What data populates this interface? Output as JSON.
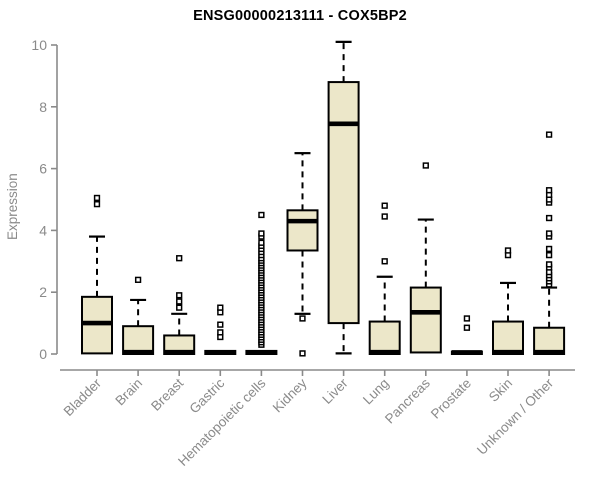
{
  "chart_data": {
    "type": "boxplot",
    "title": "ENSG00000213111 - COX5BP2",
    "xlabel": "",
    "ylabel": "Expression",
    "ylim": [
      0,
      10
    ],
    "yticks": [
      0,
      2,
      4,
      6,
      8,
      10
    ],
    "grid": false,
    "legend": "none",
    "colors": {
      "box_fill": "#ece7c9",
      "box_stroke": "#000000",
      "median": "#000000",
      "outlier_stroke": "#000000",
      "outlier_fill": "#ffffff",
      "axis": "#8a8a8a",
      "title_text": "#000000"
    },
    "categories": [
      "Bladder",
      "Brain",
      "Breast",
      "Gastric",
      "Hematopoietic cells",
      "Kidney",
      "Liver",
      "Lung",
      "Pancreas",
      "Prostate",
      "Skin",
      "Unknown / Other"
    ],
    "series": [
      {
        "label": "Bladder",
        "whisker_low": 0.02,
        "q1": 0.02,
        "median": 1.0,
        "q3": 1.85,
        "whisker_high": 3.8,
        "outliers": [
          4.85,
          5.05
        ]
      },
      {
        "label": "Brain",
        "whisker_low": 0,
        "q1": 0,
        "median": 0.06,
        "q3": 0.9,
        "whisker_high": 1.75,
        "outliers": [
          2.4
        ]
      },
      {
        "label": "Breast",
        "whisker_low": 0,
        "q1": 0,
        "median": 0.06,
        "q3": 0.6,
        "whisker_high": 1.3,
        "outliers": [
          1.5,
          1.7,
          1.9,
          3.1
        ]
      },
      {
        "label": "Gastric",
        "whisker_low": 0,
        "q1": 0,
        "median": 0.05,
        "q3": 0.1,
        "whisker_high": 0.1,
        "outliers": [
          0.55,
          0.7,
          0.95,
          1.35,
          1.5
        ]
      },
      {
        "label": "Hematopoietic cells",
        "whisker_low": 0,
        "q1": 0,
        "median": 0.05,
        "q3": 0.1,
        "whisker_high": 0.1,
        "outliers": [
          0.3,
          0.38,
          0.46,
          0.54,
          0.62,
          0.7,
          0.78,
          0.86,
          0.94,
          1.02,
          1.1,
          1.18,
          1.26,
          1.34,
          1.42,
          1.5,
          1.58,
          1.66,
          1.74,
          1.82,
          1.9,
          1.98,
          2.06,
          2.14,
          2.22,
          2.3,
          2.38,
          2.46,
          2.54,
          2.62,
          2.7,
          2.78,
          2.86,
          2.94,
          3.02,
          3.1,
          3.2,
          3.3,
          3.4,
          3.5,
          3.6,
          3.8,
          3.9,
          4.5
        ]
      },
      {
        "label": "Kidney",
        "whisker_low": 1.3,
        "q1": 3.35,
        "median": 4.3,
        "q3": 4.65,
        "whisker_high": 6.5,
        "outliers": [
          1.15,
          0.02
        ]
      },
      {
        "label": "Liver",
        "whisker_low": 0.02,
        "q1": 1.0,
        "median": 7.45,
        "q3": 8.8,
        "whisker_high": 10.1,
        "outliers": []
      },
      {
        "label": "Lung",
        "whisker_low": 0,
        "q1": 0,
        "median": 0.06,
        "q3": 1.05,
        "whisker_high": 2.5,
        "outliers": [
          3.0,
          4.45,
          4.8
        ]
      },
      {
        "label": "Pancreas",
        "whisker_low": 0.05,
        "q1": 0.05,
        "median": 1.35,
        "q3": 2.15,
        "whisker_high": 4.35,
        "outliers": [
          6.1
        ]
      },
      {
        "label": "Prostate",
        "whisker_low": 0,
        "q1": 0,
        "median": 0.05,
        "q3": 0.08,
        "whisker_high": 0.08,
        "outliers": [
          0.85,
          1.15
        ]
      },
      {
        "label": "Skin",
        "whisker_low": 0,
        "q1": 0,
        "median": 0.06,
        "q3": 1.05,
        "whisker_high": 2.3,
        "outliers": [
          3.2,
          3.35
        ]
      },
      {
        "label": "Unknown / Other",
        "whisker_low": 0,
        "q1": 0,
        "median": 0.06,
        "q3": 0.85,
        "whisker_high": 2.15,
        "outliers": [
          2.25,
          2.35,
          2.45,
          2.55,
          2.65,
          2.8,
          2.9,
          3.2,
          3.4,
          3.8,
          3.9,
          4.4,
          4.9,
          5.0,
          5.15,
          5.3,
          7.1
        ]
      }
    ]
  }
}
